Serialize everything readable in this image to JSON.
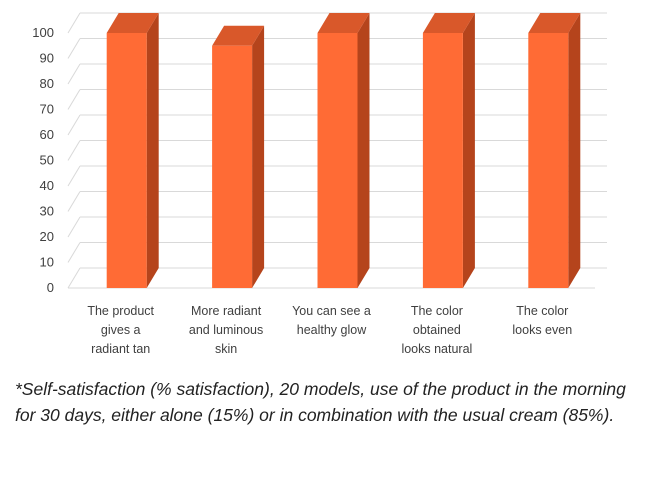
{
  "chart_data": {
    "type": "bar",
    "style": "3d-column",
    "categories": [
      [
        "The product",
        "gives a",
        "radiant tan"
      ],
      [
        "More radiant",
        "and luminous",
        "skin"
      ],
      [
        "You can see a",
        "healthy glow"
      ],
      [
        "The color",
        "obtained",
        "looks natural"
      ],
      [
        "The color",
        "looks even"
      ]
    ],
    "values": [
      100,
      95,
      100,
      100,
      100
    ],
    "ylim": [
      0,
      100
    ],
    "yticks": [
      0,
      10,
      20,
      30,
      40,
      50,
      60,
      70,
      80,
      90,
      100
    ],
    "title": "",
    "xlabel": "",
    "ylabel": "",
    "grid": true,
    "colors": {
      "bar_front": "#FF6B35",
      "bar_side": "#B5441C",
      "bar_top": "#D9582A",
      "grid": "#D9D9D9",
      "text": "#404040"
    }
  },
  "footnote": "*Self-satisfaction (% satisfaction), 20 models, use of the product in the morning for 30 days, either alone (15%) or in combination with the usual cream (85%)."
}
